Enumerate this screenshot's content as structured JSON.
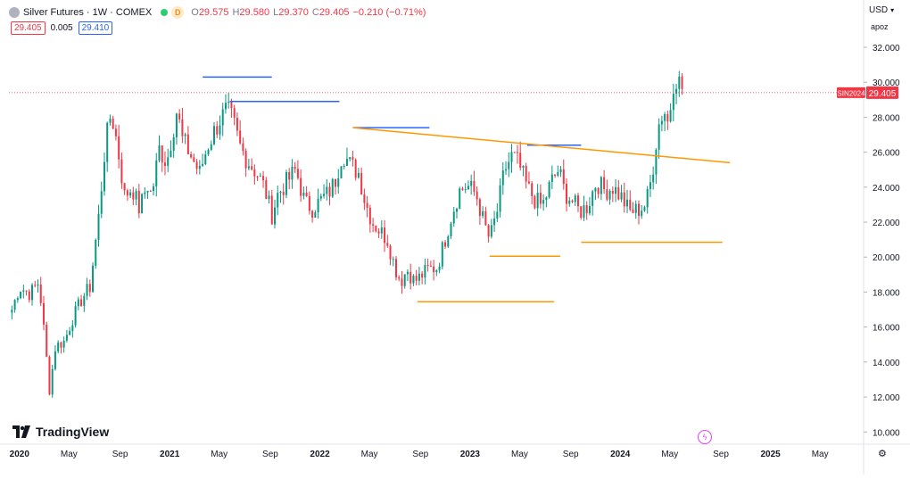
{
  "header": {
    "title": "Silver Futures · 1W · COMEX",
    "badge": "D",
    "ohlc": [
      {
        "label": "O",
        "value": "29.575"
      },
      {
        "label": "H",
        "value": "29.580"
      },
      {
        "label": "L",
        "value": "29.370"
      },
      {
        "label": "C",
        "value": "29.405"
      }
    ],
    "change": "−0.210 (−0.71%)"
  },
  "quote": {
    "sell": "29.405",
    "spread": "0.005",
    "buy": "29.410"
  },
  "scale": {
    "currency": "USD",
    "mode": "apoz"
  },
  "brand": "TradingView",
  "colors": {
    "up": "#089981",
    "down": "#f23645",
    "resistance": "#2962ff",
    "support": "#ff9800",
    "last": "#f23645"
  },
  "icons": {
    "settings": "gear-icon",
    "flash": "lightning-icon",
    "logo": "tv-logo-icon"
  },
  "chart_data": {
    "type": "candlestick",
    "symbol": "SIN2024",
    "last_price": 29.405,
    "y_ticks": [
      10,
      12,
      14,
      16,
      18,
      20,
      22,
      24,
      26,
      28,
      30,
      32
    ],
    "y_tick_labels": [
      "10.000",
      "12.000",
      "14.000",
      "16.000",
      "18.000",
      "20.000",
      "22.000",
      "24.000",
      "26.000",
      "28.000",
      "30.000",
      "32.000"
    ],
    "ylim": [
      9.3,
      34.5
    ],
    "x_labels": [
      {
        "t": 2020.0,
        "label": "2020",
        "year": true
      },
      {
        "t": 2020.33,
        "label": "May"
      },
      {
        "t": 2020.67,
        "label": "Sep"
      },
      {
        "t": 2021.0,
        "label": "2021",
        "year": true
      },
      {
        "t": 2021.33,
        "label": "May"
      },
      {
        "t": 2021.67,
        "label": "Sep"
      },
      {
        "t": 2022.0,
        "label": "2022",
        "year": true
      },
      {
        "t": 2022.33,
        "label": "May"
      },
      {
        "t": 2022.67,
        "label": "Sep"
      },
      {
        "t": 2023.0,
        "label": "2023",
        "year": true
      },
      {
        "t": 2023.33,
        "label": "May"
      },
      {
        "t": 2023.67,
        "label": "Sep"
      },
      {
        "t": 2024.0,
        "label": "2024",
        "year": true
      },
      {
        "t": 2024.33,
        "label": "May"
      },
      {
        "t": 2024.67,
        "label": "Sep"
      },
      {
        "t": 2025.0,
        "label": "2025",
        "year": true
      },
      {
        "t": 2025.33,
        "label": "May"
      }
    ],
    "xlim": [
      2019.93,
      2025.62
    ],
    "anchors": [
      [
        2019.95,
        17.0
      ],
      [
        2020.0,
        18.3
      ],
      [
        2020.07,
        17.9
      ],
      [
        2020.13,
        18.6
      ],
      [
        2020.17,
        15.2
      ],
      [
        2020.2,
        12.4
      ],
      [
        2020.24,
        14.9
      ],
      [
        2020.3,
        15.2
      ],
      [
        2020.35,
        16.4
      ],
      [
        2020.42,
        17.7
      ],
      [
        2020.47,
        18.3
      ],
      [
        2020.53,
        22.5
      ],
      [
        2020.57,
        26.3
      ],
      [
        2020.61,
        28.3
      ],
      [
        2020.65,
        26.5
      ],
      [
        2020.7,
        23.5
      ],
      [
        2020.75,
        24.0
      ],
      [
        2020.8,
        22.7
      ],
      [
        2020.85,
        24.2
      ],
      [
        2020.88,
        23.5
      ],
      [
        2020.93,
        26.2
      ],
      [
        2020.98,
        25.4
      ],
      [
        2021.05,
        28.5
      ],
      [
        2021.08,
        26.8
      ],
      [
        2021.13,
        26.0
      ],
      [
        2021.2,
        24.8
      ],
      [
        2021.25,
        26.3
      ],
      [
        2021.33,
        27.8
      ],
      [
        2021.38,
        28.4
      ],
      [
        2021.42,
        27.8
      ],
      [
        2021.47,
        26.3
      ],
      [
        2021.52,
        25.5
      ],
      [
        2021.58,
        24.8
      ],
      [
        2021.63,
        24.0
      ],
      [
        2021.68,
        22.4
      ],
      [
        2021.72,
        23.6
      ],
      [
        2021.78,
        24.3
      ],
      [
        2021.84,
        25.0
      ],
      [
        2021.9,
        23.1
      ],
      [
        2021.95,
        22.8
      ],
      [
        2022.0,
        23.2
      ],
      [
        2022.06,
        23.7
      ],
      [
        2022.1,
        24.3
      ],
      [
        2022.15,
        26.0
      ],
      [
        2022.2,
        25.3
      ],
      [
        2022.26,
        24.8
      ],
      [
        2022.3,
        23.2
      ],
      [
        2022.35,
        22.0
      ],
      [
        2022.4,
        21.5
      ],
      [
        2022.45,
        21.0
      ],
      [
        2022.5,
        19.4
      ],
      [
        2022.54,
        18.6
      ],
      [
        2022.58,
        19.3
      ],
      [
        2022.63,
        18.6
      ],
      [
        2022.67,
        18.9
      ],
      [
        2022.72,
        19.3
      ],
      [
        2022.78,
        19.4
      ],
      [
        2022.84,
        21.2
      ],
      [
        2022.88,
        22.5
      ],
      [
        2022.93,
        23.8
      ],
      [
        2022.98,
        24.1
      ],
      [
        2023.04,
        23.6
      ],
      [
        2023.09,
        22.0
      ],
      [
        2023.13,
        21.0
      ],
      [
        2023.18,
        22.6
      ],
      [
        2023.23,
        25.0
      ],
      [
        2023.28,
        25.8
      ],
      [
        2023.32,
        25.4
      ],
      [
        2023.38,
        24.0
      ],
      [
        2023.43,
        23.3
      ],
      [
        2023.48,
        22.9
      ],
      [
        2023.54,
        24.3
      ],
      [
        2023.59,
        25.0
      ],
      [
        2023.63,
        23.7
      ],
      [
        2023.68,
        23.2
      ],
      [
        2023.73,
        22.6
      ],
      [
        2023.78,
        22.9
      ],
      [
        2023.84,
        24.3
      ],
      [
        2023.9,
        23.8
      ],
      [
        2023.95,
        24.0
      ],
      [
        2024.01,
        23.4
      ],
      [
        2024.06,
        22.6
      ],
      [
        2024.12,
        22.7
      ],
      [
        2024.17,
        23.0
      ],
      [
        2024.21,
        24.6
      ],
      [
        2024.25,
        27.4
      ],
      [
        2024.29,
        28.5
      ],
      [
        2024.32,
        27.6
      ],
      [
        2024.36,
        30.5
      ],
      [
        2024.39,
        30.0
      ],
      [
        2024.43,
        29.4
      ]
    ],
    "candles_generated_weekly_from_anchors": true,
    "lines": [
      {
        "kind": "resistance",
        "x1": 2021.22,
        "y1": 30.3,
        "x2": 2021.68,
        "y2": 30.3
      },
      {
        "kind": "resistance",
        "x1": 2021.4,
        "y1": 28.9,
        "x2": 2022.13,
        "y2": 28.9
      },
      {
        "kind": "resistance",
        "x1": 2022.22,
        "y1": 27.4,
        "x2": 2022.73,
        "y2": 27.4
      },
      {
        "kind": "resistance",
        "x1": 2023.38,
        "y1": 26.4,
        "x2": 2023.74,
        "y2": 26.4
      },
      {
        "kind": "trendline",
        "x1": 2022.22,
        "y1": 27.4,
        "x2": 2024.73,
        "y2": 25.4
      },
      {
        "kind": "support",
        "x1": 2023.13,
        "y1": 20.05,
        "x2": 2023.6,
        "y2": 20.05
      },
      {
        "kind": "support",
        "x1": 2023.74,
        "y1": 20.85,
        "x2": 2024.68,
        "y2": 20.85
      },
      {
        "kind": "support",
        "x1": 2022.65,
        "y1": 17.45,
        "x2": 2023.56,
        "y2": 17.45
      }
    ]
  }
}
